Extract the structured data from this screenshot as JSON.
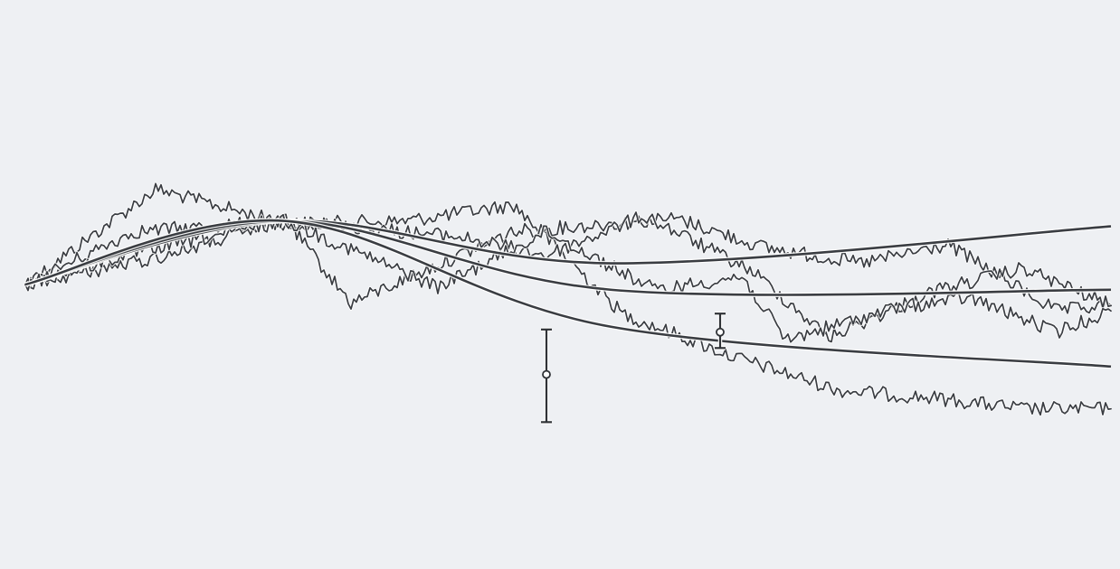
{
  "chart_data": {
    "type": "line",
    "title": "",
    "xlabel": "",
    "ylabel": "",
    "xlim": [
      0,
      100
    ],
    "ylim": [
      -100,
      100
    ],
    "grid": false,
    "legend": "none",
    "line_color": "#3a3d42",
    "background_color": "#eef0f3",
    "series": [
      {
        "x": [
          0,
          24,
          54,
          100
        ],
        "values": [
          0,
          24,
          8,
          22
        ]
      },
      {
        "x": [
          0,
          24,
          54,
          100
        ],
        "values": [
          0,
          24,
          -2,
          -2
        ]
      },
      {
        "x": [
          0,
          24,
          54,
          100
        ],
        "values": [
          0,
          24,
          -16,
          -31
        ]
      },
      {
        "x": [
          0,
          12,
          24,
          35,
          45,
          55,
          65,
          75,
          84,
          92,
          100
        ],
        "values": [
          0,
          36,
          23,
          24,
          30,
          -11,
          -27,
          -40,
          -43,
          -47,
          -47
        ]
      },
      {
        "x": [
          0,
          10,
          24,
          30,
          45,
          60,
          68,
          77,
          85,
          95,
          100
        ],
        "values": [
          0,
          20,
          24,
          -7,
          20,
          25,
          14,
          8,
          15,
          -10,
          -8
        ]
      },
      {
        "x": [
          0,
          12,
          24,
          40,
          48,
          57,
          67,
          74,
          84,
          92,
          100
        ],
        "values": [
          0,
          10,
          24,
          18,
          11,
          26,
          5,
          -20,
          -2,
          6,
          -8
        ]
      },
      {
        "x": [
          0,
          10,
          24,
          38,
          48,
          58,
          66,
          70,
          80,
          87,
          95,
          100
        ],
        "values": [
          0,
          12,
          24,
          -1,
          20,
          -2,
          3,
          -21,
          -9,
          -5,
          -18,
          -10
        ]
      }
    ],
    "error_bars": [
      {
        "x": 48,
        "y": -34,
        "low": -52,
        "high": -17
      },
      {
        "x": 64,
        "y": -18,
        "low": -24,
        "high": -11
      }
    ]
  }
}
